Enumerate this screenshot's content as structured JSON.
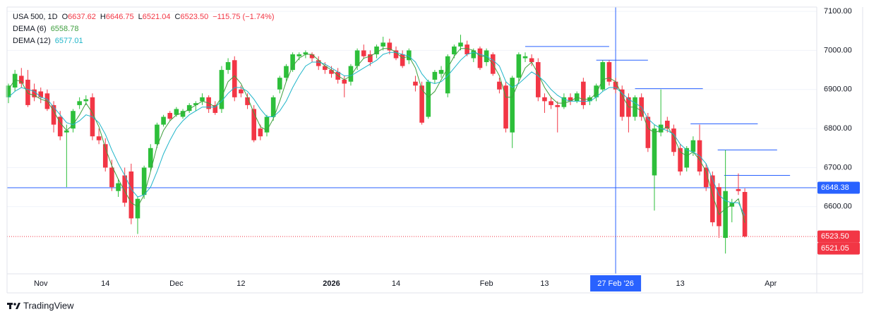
{
  "chart_data": {
    "type": "candlestick",
    "header": {
      "symbol": "USA 500, 1D",
      "ohlc_keys": [
        "O",
        "H",
        "L",
        "C"
      ],
      "change": "−115.75 (−1.74%)"
    },
    "branding": "TradingView",
    "categories": [
      null,
      null,
      null,
      null,
      null,
      "Nov",
      null,
      null,
      null,
      null,
      null,
      null,
      null,
      null,
      null,
      "14",
      null,
      null,
      null,
      null,
      null,
      null,
      null,
      null,
      null,
      null,
      "Dec",
      null,
      null,
      null,
      null,
      null,
      null,
      null,
      null,
      null,
      "12",
      null,
      null,
      null,
      null,
      null,
      null,
      null,
      null,
      null,
      null,
      null,
      null,
      null,
      "2026",
      null,
      null,
      null,
      null,
      null,
      null,
      null,
      null,
      null,
      "14",
      null,
      null,
      null,
      null,
      null,
      null,
      null,
      null,
      null,
      null,
      null,
      null,
      null,
      "Feb",
      null,
      null,
      null,
      null,
      null,
      null,
      null,
      null,
      "13",
      null,
      null,
      null,
      null,
      null,
      null,
      null,
      null,
      null,
      null,
      "27 Feb '26",
      null,
      null,
      null,
      null,
      null,
      null,
      null,
      null,
      null,
      "13",
      null,
      null,
      null,
      null,
      null,
      null,
      null,
      null,
      null,
      null,
      null,
      null,
      null,
      "Apr"
    ],
    "open": [
      6880,
      6905,
      6935,
      6925,
      6900,
      6895,
      6890,
      6860,
      6830,
      6790,
      6800,
      6860,
      6870,
      6880,
      6780,
      6760,
      6700,
      6640,
      6680,
      6690,
      6570,
      6630,
      6700,
      6760,
      6810,
      6840,
      6835,
      6830,
      6845,
      6860,
      6870,
      6880,
      6860,
      6850,
      6950,
      6975,
      6900,
      6880,
      6850,
      6800,
      6790,
      6830,
      6900,
      6930,
      6950,
      6985,
      6990,
      6990,
      6975,
      6960,
      6950,
      6945,
      6925,
      6920,
      6960,
      7000,
      6990,
      6990,
      7010,
      7020,
      7000,
      6990,
      6975,
      6920,
      6910,
      6830,
      6925,
      6940,
      6890,
      6990,
      7010,
      7015,
      6980,
      7005,
      6970,
      6990,
      6920,
      6910,
      6790,
      6930,
      6980,
      6980,
      6970,
      6880,
      6870,
      6860,
      6855,
      6880,
      6870,
      6920,
      6870,
      6880,
      6900,
      6970,
      6920,
      6900,
      6880,
      6830,
      6880,
      6830,
      6680,
      6790,
      6820,
      6800,
      6750,
      6700,
      6740,
      6770,
      6700,
      6680,
      6650,
      6520,
      6600,
      6645,
      6637.62,
      null,
      null,
      null,
      null
    ],
    "high": [
      6915,
      6950,
      6955,
      6950,
      6915,
      6905,
      6900,
      6870,
      6845,
      6810,
      6850,
      6880,
      6885,
      6890,
      6800,
      6775,
      6720,
      6670,
      6700,
      6710,
      6625,
      6705,
      6760,
      6815,
      6835,
      6845,
      6855,
      6850,
      6865,
      6870,
      6890,
      6885,
      6870,
      6960,
      6980,
      6985,
      6910,
      6890,
      6860,
      6810,
      6835,
      6885,
      6935,
      6965,
      6995,
      6995,
      7000,
      6995,
      6985,
      6970,
      6960,
      6955,
      6935,
      6965,
      7005,
      7015,
      7000,
      7015,
      7035,
      7030,
      7010,
      7000,
      7005,
      6935,
      6920,
      6925,
      6950,
      6960,
      6990,
      7015,
      7040,
      7025,
      7005,
      7010,
      7005,
      6995,
      6930,
      6920,
      6935,
      6995,
      6995,
      6990,
      6980,
      6890,
      6880,
      6870,
      6890,
      6890,
      6895,
      6930,
      6885,
      6915,
      6975,
      6975,
      6930,
      6910,
      6890,
      6885,
      6890,
      6840,
      6810,
      6900,
      6830,
      6810,
      6760,
      6755,
      6780,
      6810,
      6710,
      6690,
      6660,
      6745,
      6620,
      6685,
      6646.75,
      null,
      null,
      null,
      null
    ],
    "low": [
      6865,
      6895,
      6905,
      6855,
      6870,
      6865,
      6845,
      6790,
      6770,
      6650,
      6790,
      6850,
      6860,
      6770,
      6760,
      6690,
      6640,
      6625,
      6600,
      6555,
      6530,
      6620,
      6690,
      6750,
      6805,
      6820,
      6830,
      6825,
      6840,
      6845,
      6860,
      6840,
      6835,
      6840,
      6940,
      6870,
      6880,
      6850,
      6765,
      6770,
      6780,
      6820,
      6890,
      6920,
      6945,
      6975,
      6980,
      6970,
      6950,
      6940,
      6930,
      6915,
      6880,
      6910,
      6950,
      6980,
      6960,
      6980,
      7000,
      6990,
      6975,
      6955,
      6965,
      6895,
      6810,
      6825,
      6915,
      6930,
      6880,
      6980,
      7000,
      6985,
      6970,
      6950,
      6960,
      6935,
      6890,
      6790,
      6750,
      6920,
      6970,
      6960,
      6870,
      6840,
      6850,
      6790,
      6850,
      6860,
      6865,
      6850,
      6860,
      6870,
      6895,
      6910,
      6890,
      6820,
      6790,
      6820,
      6820,
      6740,
      6590,
      6780,
      6790,
      6730,
      6680,
      6690,
      6730,
      6680,
      6640,
      6550,
      6520,
      6480,
      6560,
      6630,
      6521.04,
      null,
      null,
      null,
      null
    ],
    "close": [
      6910,
      6940,
      6915,
      6860,
      6880,
      6880,
      6850,
      6810,
      6780,
      6795,
      6845,
      6870,
      6875,
      6780,
      6770,
      6700,
      6650,
      6660,
      6610,
      6570,
      6620,
      6700,
      6750,
      6810,
      6830,
      6825,
      6850,
      6845,
      6860,
      6865,
      6880,
      6850,
      6840,
      6950,
      6970,
      6880,
      6890,
      6860,
      6770,
      6780,
      6830,
      6880,
      6930,
      6960,
      6990,
      6990,
      6995,
      6980,
      6960,
      6950,
      6940,
      6925,
      6915,
      6960,
      7000,
      6985,
      6970,
      7010,
      7020,
      7000,
      6980,
      6960,
      7000,
      6910,
      6815,
      6920,
      6945,
      6950,
      6985,
      7010,
      7020,
      6990,
      7000,
      6955,
      7000,
      6940,
      6900,
      6800,
      6930,
      6990,
      6985,
      6970,
      6880,
      6870,
      6860,
      6855,
      6880,
      6870,
      6890,
      6860,
      6880,
      6910,
      6970,
      6920,
      6900,
      6830,
      6830,
      6880,
      6830,
      6750,
      6800,
      6810,
      6800,
      6740,
      6690,
      6750,
      6770,
      6690,
      6650,
      6560,
      6550,
      6640,
      6610,
      6640,
      6523.5,
      null,
      null,
      null,
      null
    ],
    "close_labels": [
      null,
      null,
      null,
      null,
      null,
      null,
      null,
      null,
      null,
      null,
      null,
      null,
      null,
      null,
      null,
      null,
      null,
      null,
      null,
      null,
      null,
      null,
      null,
      null,
      null,
      null,
      null,
      null,
      null,
      null,
      null,
      null,
      null,
      null,
      null,
      null,
      null,
      null,
      null,
      null,
      null,
      null,
      null,
      null,
      null,
      null,
      null,
      null,
      null,
      null,
      null,
      null,
      null,
      null,
      null,
      null,
      null,
      null,
      null,
      null,
      null,
      null,
      null,
      null,
      null,
      null,
      null,
      null,
      null,
      null,
      null,
      null,
      null,
      null,
      null,
      null,
      null,
      null,
      null,
      null,
      null,
      null,
      null,
      null,
      null,
      null,
      null,
      null,
      null,
      null,
      null,
      null,
      null,
      null,
      null,
      null,
      null,
      null,
      null,
      null,
      null,
      null,
      null,
      null,
      null,
      null,
      null,
      null,
      null,
      null,
      null,
      null,
      null,
      null,
      "6523.50",
      null,
      null,
      null,
      null
    ],
    "up_color": "#2dbf3a",
    "down_color": "#f23645",
    "series": [
      {
        "name": "DEMA (6)",
        "color": "#3f9f3f",
        "values": [
          6900,
          6925,
          6920,
          6890,
          6885,
          6875,
          6870,
          6845,
          6815,
          6795,
          6810,
          6835,
          6865,
          6840,
          6805,
          6750,
          6705,
          6670,
          6640,
          6610,
          6600,
          6630,
          6690,
          6755,
          6795,
          6820,
          6835,
          6840,
          6850,
          6860,
          6870,
          6865,
          6855,
          6880,
          6920,
          6935,
          6915,
          6880,
          6840,
          6805,
          6795,
          6825,
          6870,
          6920,
          6960,
          6980,
          6990,
          6990,
          6975,
          6960,
          6950,
          6935,
          6925,
          6935,
          6960,
          6980,
          6985,
          6995,
          7005,
          7005,
          6995,
          6980,
          6985,
          6955,
          6900,
          6880,
          6895,
          6925,
          6955,
          6985,
          7005,
          7005,
          7000,
          6985,
          6985,
          6965,
          6935,
          6880,
          6880,
          6920,
          6955,
          6970,
          6940,
          6905,
          6880,
          6865,
          6865,
          6870,
          6880,
          6875,
          6875,
          6890,
          6925,
          6930,
          6920,
          6885,
          6855,
          6855,
          6845,
          6800,
          6790,
          6795,
          6805,
          6780,
          6740,
          6730,
          6740,
          6720,
          6690,
          6630,
          6580,
          6595,
          6605,
          6620,
          6558.78,
          null,
          null,
          null,
          null
        ]
      },
      {
        "name": "DEMA (12)",
        "color": "#1fb5c9",
        "values": [
          6880,
          6895,
          6905,
          6900,
          6895,
          6880,
          6875,
          6855,
          6835,
          6815,
          6810,
          6820,
          6835,
          6830,
          6815,
          6785,
          6745,
          6710,
          6680,
          6645,
          6625,
          6630,
          6650,
          6690,
          6735,
          6770,
          6800,
          6820,
          6835,
          6845,
          6855,
          6855,
          6855,
          6870,
          6890,
          6905,
          6905,
          6895,
          6875,
          6850,
          6830,
          6830,
          6845,
          6870,
          6905,
          6935,
          6960,
          6970,
          6970,
          6965,
          6955,
          6945,
          6935,
          6935,
          6945,
          6955,
          6965,
          6975,
          6990,
          6995,
          6995,
          6990,
          6985,
          6970,
          6940,
          6920,
          6915,
          6920,
          6935,
          6955,
          6975,
          6990,
          6995,
          6990,
          6985,
          6975,
          6960,
          6920,
          6905,
          6915,
          6930,
          6945,
          6935,
          6920,
          6900,
          6885,
          6875,
          6870,
          6870,
          6870,
          6870,
          6880,
          6895,
          6905,
          6905,
          6890,
          6875,
          6865,
          6855,
          6825,
          6810,
          6800,
          6795,
          6785,
          6760,
          6745,
          6740,
          6730,
          6710,
          6670,
          6630,
          6615,
          6610,
          6610,
          6577.01,
          null,
          null,
          null,
          null
        ]
      }
    ],
    "ylim": [
      6428,
      7111
    ],
    "yticks": [
      {
        "value": 6600,
        "label": "6600.00"
      },
      {
        "value": 6700,
        "label": "6700.00"
      },
      {
        "value": 6800,
        "label": "6800.00"
      },
      {
        "value": 6900,
        "label": "6900.00"
      },
      {
        "value": 7000,
        "label": "7000.00"
      },
      {
        "value": 7100,
        "label": "7100.00"
      }
    ],
    "grid": true,
    "crosshair": {
      "category": "27 Feb '26",
      "value": 6648.38,
      "color": "#2962ff"
    },
    "price_markers": [
      {
        "value": 6521.05,
        "color": "#f23645"
      }
    ],
    "hlines": [
      {
        "value": 7010,
        "start": 80,
        "end": 93
      },
      {
        "value": 6975,
        "start": 91,
        "end": 99
      },
      {
        "value": 6902,
        "start": 97,
        "end": 107.5
      },
      {
        "value": 6812,
        "start": 105.6,
        "end": 116
      },
      {
        "value": 6745,
        "start": 109.8,
        "end": 119
      },
      {
        "value": 6680,
        "start": 110.8,
        "end": 121
      }
    ],
    "hline_color": "#2962ff"
  }
}
